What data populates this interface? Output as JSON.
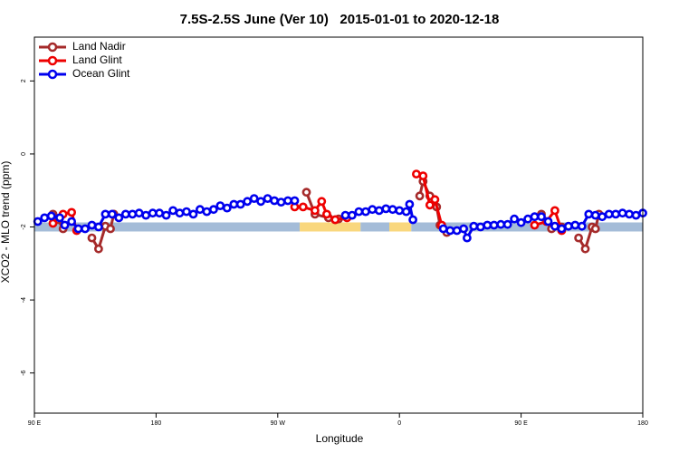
{
  "chart_data": {
    "type": "line",
    "title": "7.5S-2.5S June (Ver 10)   2015-01-01 to 2020-12-18",
    "xlabel": "Longitude",
    "ylabel": "XCO2 - MLO trend (ppm)",
    "xlim": [
      90,
      450
    ],
    "ylim": [
      -7.1,
      3.2
    ],
    "x_ticks": [
      {
        "x": 90,
        "label": "90 E"
      },
      {
        "x": 162,
        "label": "180"
      },
      {
        "x": 234,
        "label": "90 W"
      },
      {
        "x": 306,
        "label": "0"
      },
      {
        "x": 378,
        "label": "90 E"
      },
      {
        "x": 450,
        "label": "180"
      }
    ],
    "y_ticks": [
      2,
      0,
      -2,
      -4,
      -6
    ],
    "legend_position": "top-left",
    "background_band": {
      "y": -2.0,
      "segments": [
        {
          "x0": 90,
          "x1": 247,
          "color": "#a4bcd8"
        },
        {
          "x0": 247,
          "x1": 283,
          "color": "#f9d77d"
        },
        {
          "x0": 283,
          "x1": 300,
          "color": "#a4bcd8"
        },
        {
          "x0": 300,
          "x1": 313,
          "color": "#f9d77d"
        },
        {
          "x0": 313,
          "x1": 450,
          "color": "#a4bcd8"
        }
      ]
    },
    "series": [
      {
        "name": "Land Nadir",
        "color": "#a52a2a",
        "segments": [
          [
            [
              101,
              -1.65
            ],
            [
              104,
              -1.8
            ],
            [
              107,
              -2.05
            ]
          ],
          [
            [
              124,
              -2.3
            ],
            [
              128,
              -2.6
            ],
            [
              132,
              -1.98
            ],
            [
              135,
              -2.05
            ],
            [
              137,
              -1.65
            ]
          ],
          [
            [
              251,
              -1.05
            ],
            [
              256,
              -1.65
            ],
            [
              264,
              -1.75
            ],
            [
              268,
              -1.8
            ],
            [
              270,
              -1.78
            ]
          ],
          [
            [
              318,
              -1.15
            ],
            [
              320,
              -0.75
            ],
            [
              324,
              -1.15
            ],
            [
              328,
              -1.45
            ],
            [
              330,
              -1.95
            ],
            [
              334,
              -2.15
            ]
          ],
          [
            [
              390,
              -1.65
            ],
            [
              396,
              -2.05
            ],
            [
              402,
              -2.0
            ]
          ],
          [
            [
              412,
              -2.3
            ],
            [
              416,
              -2.6
            ],
            [
              420,
              -2.0
            ],
            [
              422,
              -2.05
            ],
            [
              424,
              -1.65
            ]
          ]
        ]
      },
      {
        "name": "Land Glint",
        "color": "#ee0000",
        "segments": [
          [
            [
              101,
              -1.9
            ],
            [
              107,
              -1.65
            ],
            [
              112,
              -1.6
            ],
            [
              115,
              -2.1
            ]
          ],
          [
            [
              244,
              -1.45
            ],
            [
              249,
              -1.45
            ],
            [
              256,
              -1.55
            ],
            [
              260,
              -1.3
            ],
            [
              263,
              -1.65
            ],
            [
              268,
              -1.8
            ],
            [
              275,
              -1.75
            ]
          ],
          [
            [
              316,
              -0.55
            ],
            [
              320,
              -0.6
            ],
            [
              324,
              -1.4
            ],
            [
              327,
              -1.25
            ],
            [
              331,
              -1.95
            ]
          ],
          [
            [
              386,
              -1.95
            ],
            [
              393,
              -1.85
            ],
            [
              398,
              -1.55
            ],
            [
              402,
              -2.1
            ]
          ]
        ]
      },
      {
        "name": "Ocean Glint",
        "color": "#0000ee",
        "segments": [
          [
            [
              92,
              -1.85
            ],
            [
              96,
              -1.75
            ],
            [
              100,
              -1.7
            ],
            [
              105,
              -1.75
            ],
            [
              108,
              -1.95
            ],
            [
              112,
              -1.85
            ],
            [
              116,
              -2.05
            ],
            [
              120,
              -2.05
            ],
            [
              124,
              -1.95
            ],
            [
              128,
              -2.0
            ],
            [
              132,
              -1.65
            ],
            [
              136,
              -1.65
            ],
            [
              140,
              -1.75
            ],
            [
              144,
              -1.65
            ],
            [
              148,
              -1.65
            ],
            [
              152,
              -1.62
            ],
            [
              156,
              -1.68
            ],
            [
              160,
              -1.62
            ],
            [
              164,
              -1.62
            ],
            [
              168,
              -1.68
            ],
            [
              172,
              -1.55
            ],
            [
              176,
              -1.62
            ],
            [
              180,
              -1.58
            ],
            [
              184,
              -1.65
            ],
            [
              188,
              -1.52
            ],
            [
              192,
              -1.58
            ],
            [
              196,
              -1.52
            ],
            [
              200,
              -1.42
            ],
            [
              204,
              -1.48
            ],
            [
              208,
              -1.38
            ],
            [
              212,
              -1.38
            ],
            [
              216,
              -1.3
            ],
            [
              220,
              -1.22
            ],
            [
              224,
              -1.3
            ],
            [
              228,
              -1.22
            ],
            [
              232,
              -1.28
            ],
            [
              236,
              -1.32
            ],
            [
              240,
              -1.28
            ],
            [
              244,
              -1.28
            ]
          ],
          [
            [
              274,
              -1.68
            ],
            [
              278,
              -1.68
            ],
            [
              282,
              -1.58
            ],
            [
              286,
              -1.58
            ],
            [
              290,
              -1.52
            ],
            [
              294,
              -1.55
            ],
            [
              298,
              -1.5
            ],
            [
              302,
              -1.52
            ],
            [
              306,
              -1.55
            ],
            [
              310,
              -1.58
            ],
            [
              312,
              -1.38
            ],
            [
              314,
              -1.8
            ]
          ],
          [
            [
              332,
              -2.05
            ],
            [
              336,
              -2.1
            ],
            [
              340,
              -2.1
            ],
            [
              344,
              -2.05
            ],
            [
              346,
              -2.3
            ],
            [
              350,
              -1.98
            ],
            [
              354,
              -2.0
            ],
            [
              358,
              -1.95
            ],
            [
              362,
              -1.95
            ],
            [
              366,
              -1.93
            ],
            [
              370,
              -1.93
            ],
            [
              374,
              -1.78
            ],
            [
              378,
              -1.88
            ],
            [
              382,
              -1.78
            ],
            [
              386,
              -1.72
            ],
            [
              390,
              -1.72
            ],
            [
              394,
              -1.85
            ],
            [
              398,
              -1.98
            ],
            [
              402,
              -2.05
            ],
            [
              406,
              -1.98
            ],
            [
              410,
              -1.95
            ],
            [
              414,
              -1.98
            ],
            [
              418,
              -1.65
            ],
            [
              422,
              -1.68
            ],
            [
              426,
              -1.72
            ],
            [
              430,
              -1.65
            ],
            [
              434,
              -1.65
            ],
            [
              438,
              -1.62
            ],
            [
              442,
              -1.65
            ],
            [
              446,
              -1.68
            ],
            [
              450,
              -1.62
            ]
          ]
        ]
      }
    ]
  }
}
